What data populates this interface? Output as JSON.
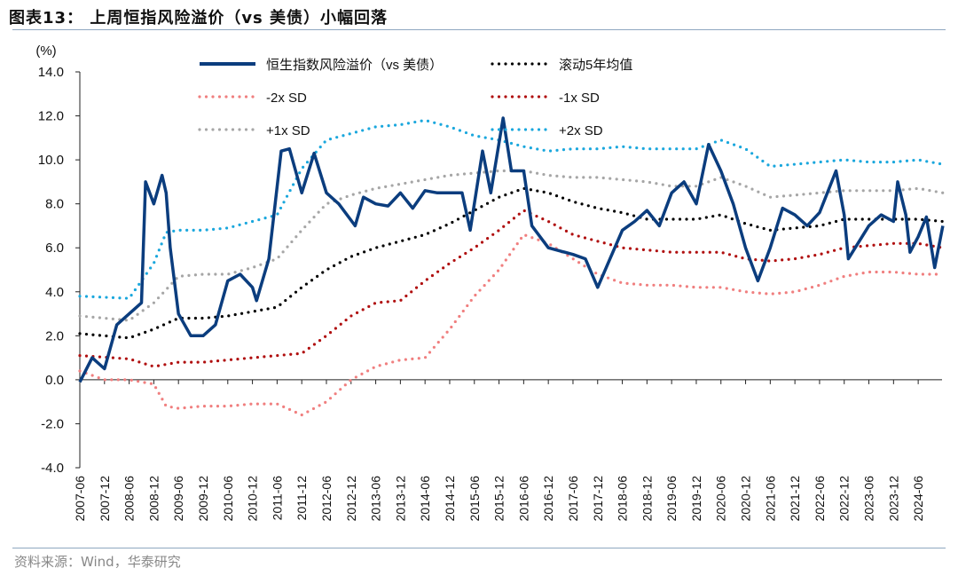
{
  "title": "图表13： 上周恒指风险溢价（vs 美债）小幅回落",
  "source": "资料来源：Wind，华泰研究",
  "chart_data": {
    "type": "line",
    "ylabel": "(%)",
    "ylim": [
      -4,
      14
    ],
    "yticks": [
      "14.0",
      "12.0",
      "10.0",
      "8.0",
      "6.0",
      "4.0",
      "2.0",
      "0.0",
      "-2.0",
      "-4.0"
    ],
    "xticks": [
      "2007-06",
      "2007-12",
      "2008-06",
      "2008-12",
      "2009-06",
      "2009-12",
      "2010-06",
      "2010-12",
      "2011-06",
      "2011-12",
      "2012-06",
      "2012-12",
      "2013-06",
      "2013-12",
      "2014-06",
      "2014-12",
      "2015-06",
      "2015-12",
      "2016-06",
      "2016-12",
      "2017-06",
      "2017-12",
      "2018-06",
      "2018-12",
      "2019-06",
      "2019-12",
      "2020-06",
      "2020-12",
      "2021-06",
      "2021-12",
      "2022-06",
      "2022-12",
      "2023-06",
      "2023-12",
      "2024-06"
    ],
    "legend_placement": "top",
    "grid": false,
    "series": [
      {
        "name": "恒生指数风险溢价（vs 美债）",
        "color": "#0b3d7e",
        "style": "solid",
        "x": [
          "2007-06",
          "2007-09",
          "2007-12",
          "2008-03",
          "2008-06",
          "2008-09",
          "2008-10",
          "2008-12",
          "2009-02",
          "2009-03",
          "2009-04",
          "2009-06",
          "2009-09",
          "2009-12",
          "2010-03",
          "2010-06",
          "2010-09",
          "2010-12",
          "2011-01",
          "2011-04",
          "2011-07",
          "2011-09",
          "2011-12",
          "2012-03",
          "2012-06",
          "2012-09",
          "2013-01",
          "2013-03",
          "2013-06",
          "2013-09",
          "2013-12",
          "2014-03",
          "2014-06",
          "2014-09",
          "2014-12",
          "2015-03",
          "2015-05",
          "2015-08",
          "2015-10",
          "2016-01",
          "2016-03",
          "2016-06",
          "2016-08",
          "2016-12",
          "2017-06",
          "2017-09",
          "2017-12",
          "2018-03",
          "2018-06",
          "2018-09",
          "2018-12",
          "2019-03",
          "2019-06",
          "2019-09",
          "2019-12",
          "2020-03",
          "2020-06",
          "2020-09",
          "2020-12",
          "2021-03",
          "2021-06",
          "2021-09",
          "2021-12",
          "2022-03",
          "2022-06",
          "2022-10",
          "2022-12",
          "2023-01",
          "2023-06",
          "2023-09",
          "2023-12",
          "2024-01",
          "2024-03",
          "2024-04",
          "2024-06",
          "2024-08",
          "2024-10",
          "2024-12"
        ],
        "values": [
          -0.1,
          1.0,
          0.5,
          2.5,
          3.0,
          3.5,
          9.0,
          8.0,
          9.3,
          8.5,
          6.0,
          3.0,
          2.0,
          2.0,
          2.5,
          4.5,
          4.8,
          4.2,
          3.6,
          5.5,
          10.4,
          10.5,
          8.5,
          10.3,
          8.5,
          8.0,
          7.0,
          8.3,
          8.0,
          7.9,
          8.5,
          7.8,
          8.6,
          8.5,
          8.5,
          8.5,
          6.8,
          10.4,
          8.5,
          11.9,
          9.5,
          9.5,
          7.0,
          6.0,
          5.7,
          5.5,
          4.2,
          5.5,
          6.8,
          7.2,
          7.7,
          7.0,
          8.5,
          9.0,
          8.0,
          10.7,
          9.5,
          8.0,
          6.0,
          4.5,
          6.0,
          7.8,
          7.5,
          7.0,
          7.6,
          9.5,
          7.5,
          5.5,
          7.0,
          7.5,
          7.2,
          9.0,
          7.5,
          5.8,
          6.5,
          7.4,
          5.1,
          7.0
        ]
      },
      {
        "name": "滚动5年均值",
        "color": "#000000",
        "style": "dotted",
        "x": [
          "2007-06",
          "2008-06",
          "2008-12",
          "2009-06",
          "2009-12",
          "2010-06",
          "2010-12",
          "2011-06",
          "2011-12",
          "2012-06",
          "2012-12",
          "2013-06",
          "2013-12",
          "2014-06",
          "2014-12",
          "2015-06",
          "2015-12",
          "2016-06",
          "2016-12",
          "2017-06",
          "2017-12",
          "2018-06",
          "2018-12",
          "2019-06",
          "2019-12",
          "2020-06",
          "2020-12",
          "2021-06",
          "2021-12",
          "2022-06",
          "2022-12",
          "2023-06",
          "2023-12",
          "2024-06",
          "2024-12"
        ],
        "values": [
          2.1,
          1.9,
          2.3,
          2.8,
          2.8,
          2.9,
          3.1,
          3.3,
          4.2,
          5.0,
          5.6,
          6.0,
          6.3,
          6.6,
          7.1,
          7.7,
          8.3,
          8.7,
          8.5,
          8.1,
          7.8,
          7.6,
          7.3,
          7.3,
          7.3,
          7.5,
          7.1,
          6.8,
          6.9,
          7.0,
          7.3,
          7.3,
          7.3,
          7.3,
          7.2
        ]
      },
      {
        "name": "-2x SD",
        "color": "#f07f7f",
        "style": "dotted",
        "x": [
          "2007-06",
          "2007-12",
          "2008-06",
          "2008-12",
          "2009-03",
          "2009-06",
          "2009-12",
          "2010-06",
          "2010-12",
          "2011-06",
          "2011-12",
          "2012-06",
          "2012-12",
          "2013-06",
          "2013-12",
          "2014-06",
          "2014-12",
          "2015-06",
          "2015-12",
          "2016-06",
          "2016-12",
          "2017-06",
          "2017-12",
          "2018-06",
          "2018-12",
          "2019-06",
          "2019-12",
          "2020-06",
          "2020-12",
          "2021-06",
          "2021-12",
          "2022-06",
          "2022-12",
          "2023-06",
          "2023-12",
          "2024-06",
          "2024-12"
        ],
        "values": [
          0.4,
          0.0,
          0.0,
          -0.2,
          -1.2,
          -1.3,
          -1.2,
          -1.2,
          -1.1,
          -1.1,
          -1.6,
          -1.0,
          0.0,
          0.6,
          0.9,
          1.0,
          2.3,
          3.8,
          5.0,
          6.6,
          6.2,
          5.5,
          4.8,
          4.4,
          4.3,
          4.3,
          4.2,
          4.2,
          4.0,
          3.9,
          4.0,
          4.3,
          4.7,
          4.9,
          4.9,
          4.8,
          4.8
        ]
      },
      {
        "name": "-1x SD",
        "color": "#b00f0f",
        "style": "dotted",
        "x": [
          "2007-06",
          "2008-06",
          "2008-12",
          "2009-06",
          "2009-12",
          "2010-06",
          "2010-12",
          "2011-06",
          "2011-12",
          "2012-06",
          "2012-12",
          "2013-06",
          "2013-12",
          "2014-06",
          "2014-12",
          "2015-06",
          "2015-12",
          "2016-06",
          "2016-12",
          "2017-06",
          "2017-12",
          "2018-06",
          "2018-12",
          "2019-06",
          "2019-12",
          "2020-06",
          "2020-12",
          "2021-06",
          "2021-12",
          "2022-06",
          "2022-12",
          "2023-06",
          "2023-12",
          "2024-06",
          "2024-12"
        ],
        "values": [
          1.1,
          0.95,
          0.6,
          0.8,
          0.8,
          0.9,
          1.0,
          1.1,
          1.2,
          2.0,
          2.9,
          3.5,
          3.6,
          4.5,
          5.3,
          6.0,
          6.8,
          7.7,
          7.2,
          6.6,
          6.3,
          6.0,
          5.9,
          5.8,
          5.8,
          5.8,
          5.5,
          5.4,
          5.5,
          5.7,
          6.0,
          6.1,
          6.2,
          6.2,
          6.0
        ]
      },
      {
        "name": "+1x SD",
        "color": "#a6a6a6",
        "style": "dotted",
        "x": [
          "2007-06",
          "2008-06",
          "2008-12",
          "2009-06",
          "2009-12",
          "2010-06",
          "2010-12",
          "2011-06",
          "2011-12",
          "2012-06",
          "2012-12",
          "2013-06",
          "2013-12",
          "2014-06",
          "2014-12",
          "2015-06",
          "2015-12",
          "2016-06",
          "2016-12",
          "2017-06",
          "2017-12",
          "2018-06",
          "2018-12",
          "2019-06",
          "2019-12",
          "2020-06",
          "2020-12",
          "2021-06",
          "2021-12",
          "2022-06",
          "2022-12",
          "2023-06",
          "2023-12",
          "2024-06",
          "2024-12"
        ],
        "values": [
          2.9,
          2.7,
          3.5,
          4.7,
          4.8,
          4.8,
          5.1,
          5.5,
          6.8,
          8.0,
          8.4,
          8.7,
          8.9,
          9.1,
          9.3,
          9.4,
          9.5,
          9.5,
          9.3,
          9.2,
          9.2,
          9.1,
          9.0,
          8.8,
          8.8,
          9.2,
          8.8,
          8.3,
          8.4,
          8.5,
          8.6,
          8.6,
          8.6,
          8.7,
          8.5
        ]
      },
      {
        "name": "+2x SD",
        "color": "#1aa7dd",
        "style": "dotted",
        "x": [
          "2007-06",
          "2008-06",
          "2008-12",
          "2009-03",
          "2009-06",
          "2009-12",
          "2010-06",
          "2010-12",
          "2011-06",
          "2011-12",
          "2012-06",
          "2012-12",
          "2013-06",
          "2013-12",
          "2014-06",
          "2014-12",
          "2015-06",
          "2015-12",
          "2016-06",
          "2016-12",
          "2017-06",
          "2017-12",
          "2018-06",
          "2018-12",
          "2019-06",
          "2019-12",
          "2020-06",
          "2020-12",
          "2021-06",
          "2021-12",
          "2022-06",
          "2022-12",
          "2023-06",
          "2023-12",
          "2024-06",
          "2024-12"
        ],
        "values": [
          3.8,
          3.7,
          5.3,
          6.7,
          6.8,
          6.8,
          6.9,
          7.2,
          7.5,
          9.6,
          10.9,
          11.2,
          11.5,
          11.6,
          11.8,
          11.5,
          11.1,
          10.9,
          10.6,
          10.4,
          10.5,
          10.5,
          10.6,
          10.5,
          10.5,
          10.5,
          10.9,
          10.5,
          9.7,
          9.8,
          9.9,
          10.0,
          9.9,
          9.9,
          10.0,
          9.8
        ]
      }
    ]
  }
}
